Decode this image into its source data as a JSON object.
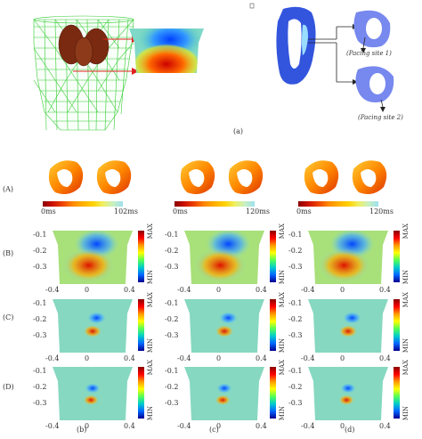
{
  "top": {
    "panel_label": "(a)",
    "pacing_site_1": "(Pacing site 1)",
    "pacing_site_2": "(Pacing site 2)"
  },
  "row_labels": {
    "A": "(A)",
    "B": "(B)",
    "C": "(C)",
    "D": "(D)"
  },
  "columns": [
    {
      "label": "(b)",
      "scale_min": "0ms",
      "scale_max": "102ms"
    },
    {
      "label": "(c)",
      "scale_min": "0ms",
      "scale_max": "120ms"
    },
    {
      "label": "(d)",
      "scale_min": "0ms",
      "scale_max": "120ms"
    }
  ],
  "axis": {
    "y_ticks": [
      "-0.1",
      "-0.2",
      "-0.3"
    ],
    "x_ticks": [
      "-0.4",
      "0",
      "0.4"
    ]
  },
  "colorbar": {
    "max": "MAX",
    "min": "MIN"
  },
  "colors": {
    "torso_mesh": "#33cc33",
    "heart": "#7a2a10",
    "arrow": "#e02020",
    "heart_slice": "#3355dd"
  }
}
